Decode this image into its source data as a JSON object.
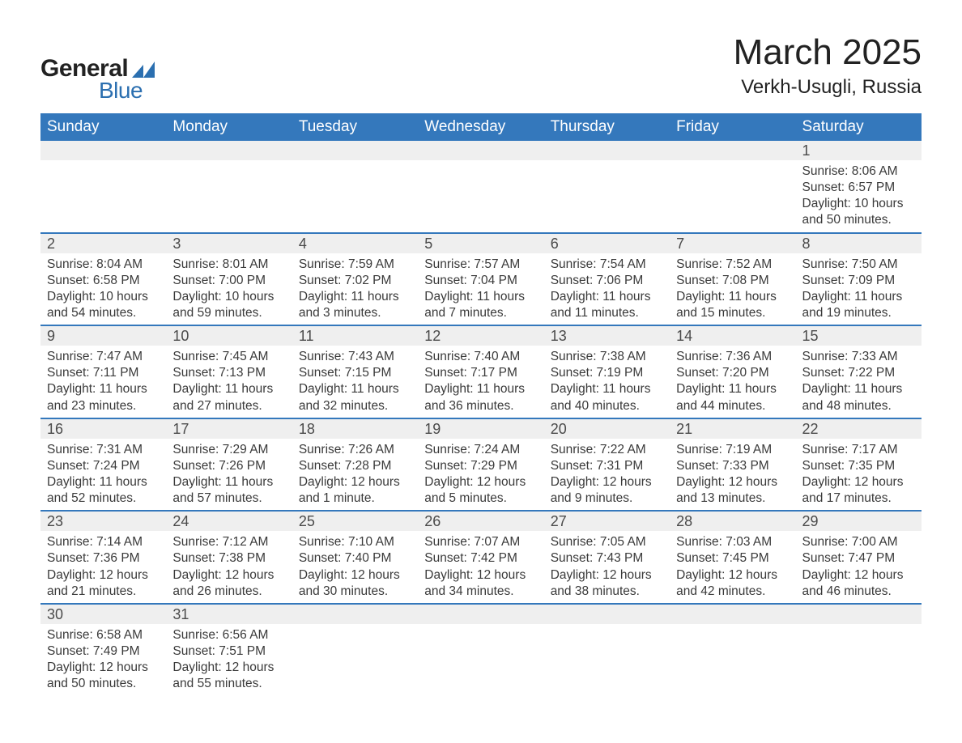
{
  "logo": {
    "word1": "General",
    "word2": "Blue",
    "shape_color": "#2b6fb0",
    "text_color1": "#222222",
    "text_color2": "#2b6fb0"
  },
  "header": {
    "month_title": "March 2025",
    "location": "Verkh-Usugli, Russia"
  },
  "colors": {
    "header_bg": "#3478bc",
    "header_text": "#ffffff",
    "daynum_bg": "#efefef",
    "row_border": "#3478bc",
    "body_text": "#3a3a3a"
  },
  "weekday_labels": [
    "Sunday",
    "Monday",
    "Tuesday",
    "Wednesday",
    "Thursday",
    "Friday",
    "Saturday"
  ],
  "calendar": {
    "type": "table",
    "month": "March",
    "year": 2025,
    "first_weekday_index": 6,
    "weeks": [
      [
        null,
        null,
        null,
        null,
        null,
        null,
        {
          "d": "1",
          "sunrise": "8:06 AM",
          "sunset": "6:57 PM",
          "daylight": "10 hours and 50 minutes."
        }
      ],
      [
        {
          "d": "2",
          "sunrise": "8:04 AM",
          "sunset": "6:58 PM",
          "daylight": "10 hours and 54 minutes."
        },
        {
          "d": "3",
          "sunrise": "8:01 AM",
          "sunset": "7:00 PM",
          "daylight": "10 hours and 59 minutes."
        },
        {
          "d": "4",
          "sunrise": "7:59 AM",
          "sunset": "7:02 PM",
          "daylight": "11 hours and 3 minutes."
        },
        {
          "d": "5",
          "sunrise": "7:57 AM",
          "sunset": "7:04 PM",
          "daylight": "11 hours and 7 minutes."
        },
        {
          "d": "6",
          "sunrise": "7:54 AM",
          "sunset": "7:06 PM",
          "daylight": "11 hours and 11 minutes."
        },
        {
          "d": "7",
          "sunrise": "7:52 AM",
          "sunset": "7:08 PM",
          "daylight": "11 hours and 15 minutes."
        },
        {
          "d": "8",
          "sunrise": "7:50 AM",
          "sunset": "7:09 PM",
          "daylight": "11 hours and 19 minutes."
        }
      ],
      [
        {
          "d": "9",
          "sunrise": "7:47 AM",
          "sunset": "7:11 PM",
          "daylight": "11 hours and 23 minutes."
        },
        {
          "d": "10",
          "sunrise": "7:45 AM",
          "sunset": "7:13 PM",
          "daylight": "11 hours and 27 minutes."
        },
        {
          "d": "11",
          "sunrise": "7:43 AM",
          "sunset": "7:15 PM",
          "daylight": "11 hours and 32 minutes."
        },
        {
          "d": "12",
          "sunrise": "7:40 AM",
          "sunset": "7:17 PM",
          "daylight": "11 hours and 36 minutes."
        },
        {
          "d": "13",
          "sunrise": "7:38 AM",
          "sunset": "7:19 PM",
          "daylight": "11 hours and 40 minutes."
        },
        {
          "d": "14",
          "sunrise": "7:36 AM",
          "sunset": "7:20 PM",
          "daylight": "11 hours and 44 minutes."
        },
        {
          "d": "15",
          "sunrise": "7:33 AM",
          "sunset": "7:22 PM",
          "daylight": "11 hours and 48 minutes."
        }
      ],
      [
        {
          "d": "16",
          "sunrise": "7:31 AM",
          "sunset": "7:24 PM",
          "daylight": "11 hours and 52 minutes."
        },
        {
          "d": "17",
          "sunrise": "7:29 AM",
          "sunset": "7:26 PM",
          "daylight": "11 hours and 57 minutes."
        },
        {
          "d": "18",
          "sunrise": "7:26 AM",
          "sunset": "7:28 PM",
          "daylight": "12 hours and 1 minute."
        },
        {
          "d": "19",
          "sunrise": "7:24 AM",
          "sunset": "7:29 PM",
          "daylight": "12 hours and 5 minutes."
        },
        {
          "d": "20",
          "sunrise": "7:22 AM",
          "sunset": "7:31 PM",
          "daylight": "12 hours and 9 minutes."
        },
        {
          "d": "21",
          "sunrise": "7:19 AM",
          "sunset": "7:33 PM",
          "daylight": "12 hours and 13 minutes."
        },
        {
          "d": "22",
          "sunrise": "7:17 AM",
          "sunset": "7:35 PM",
          "daylight": "12 hours and 17 minutes."
        }
      ],
      [
        {
          "d": "23",
          "sunrise": "7:14 AM",
          "sunset": "7:36 PM",
          "daylight": "12 hours and 21 minutes."
        },
        {
          "d": "24",
          "sunrise": "7:12 AM",
          "sunset": "7:38 PM",
          "daylight": "12 hours and 26 minutes."
        },
        {
          "d": "25",
          "sunrise": "7:10 AM",
          "sunset": "7:40 PM",
          "daylight": "12 hours and 30 minutes."
        },
        {
          "d": "26",
          "sunrise": "7:07 AM",
          "sunset": "7:42 PM",
          "daylight": "12 hours and 34 minutes."
        },
        {
          "d": "27",
          "sunrise": "7:05 AM",
          "sunset": "7:43 PM",
          "daylight": "12 hours and 38 minutes."
        },
        {
          "d": "28",
          "sunrise": "7:03 AM",
          "sunset": "7:45 PM",
          "daylight": "12 hours and 42 minutes."
        },
        {
          "d": "29",
          "sunrise": "7:00 AM",
          "sunset": "7:47 PM",
          "daylight": "12 hours and 46 minutes."
        }
      ],
      [
        {
          "d": "30",
          "sunrise": "6:58 AM",
          "sunset": "7:49 PM",
          "daylight": "12 hours and 50 minutes."
        },
        {
          "d": "31",
          "sunrise": "6:56 AM",
          "sunset": "7:51 PM",
          "daylight": "12 hours and 55 minutes."
        },
        null,
        null,
        null,
        null,
        null
      ]
    ]
  },
  "field_labels": {
    "sunrise": "Sunrise:",
    "sunset": "Sunset:",
    "daylight": "Daylight:"
  }
}
